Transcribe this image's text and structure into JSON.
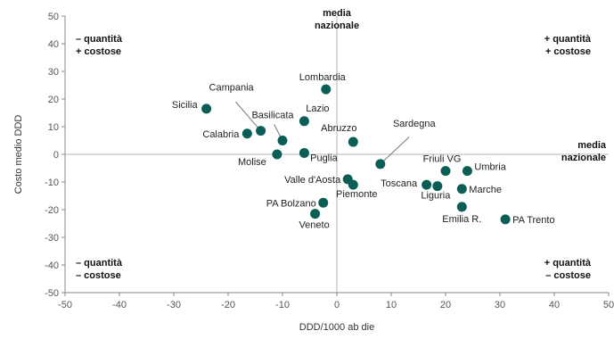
{
  "chart_data": {
    "type": "scatter",
    "xlabel": "DDD/1000 ab die",
    "ylabel": "Costo medio DDD",
    "xlim": [
      -50,
      50
    ],
    "ylim": [
      -50,
      50
    ],
    "xticks": [
      -50,
      -40,
      -30,
      -20,
      -10,
      0,
      10,
      20,
      30,
      40,
      50
    ],
    "yticks": [
      -50,
      -40,
      -30,
      -20,
      -10,
      0,
      10,
      20,
      30,
      40,
      50
    ],
    "grid": false,
    "reference_lines": {
      "vertical_label": [
        "media",
        "nazionale"
      ],
      "horizontal_label": [
        "media",
        "nazionale"
      ]
    },
    "quadrant_labels": {
      "top_left": [
        "– quantità",
        "+ costose"
      ],
      "top_right": [
        "+ quantità",
        "+ costose"
      ],
      "bottom_left": [
        "– quantità",
        "– costose"
      ],
      "bottom_right": [
        "+ quantità",
        "– costose"
      ]
    },
    "marker_color": "#0b5e55",
    "points": [
      {
        "label": "Lombardia",
        "x": -2,
        "y": 23.5
      },
      {
        "label": "Sicilia",
        "x": -24,
        "y": 16.5
      },
      {
        "label": "Campania",
        "x": -14,
        "y": 8.5
      },
      {
        "label": "Basilicata",
        "x": -10,
        "y": 5
      },
      {
        "label": "Lazio",
        "x": -6,
        "y": 12
      },
      {
        "label": "Calabria",
        "x": -16.5,
        "y": 7.5
      },
      {
        "label": "Molise",
        "x": -11,
        "y": 0
      },
      {
        "label": "Puglia",
        "x": -6,
        "y": 0.5
      },
      {
        "label": "Abruzzo",
        "x": 3,
        "y": 4.5
      },
      {
        "label": "Sardegna",
        "x": 8,
        "y": -3.5
      },
      {
        "label": "Valle d'Aosta",
        "x": 2,
        "y": -9
      },
      {
        "label": "Piemonte",
        "x": 3,
        "y": -11
      },
      {
        "label": "PA Bolzano",
        "x": -2.5,
        "y": -17.5
      },
      {
        "label": "Veneto",
        "x": -4,
        "y": -21.5
      },
      {
        "label": "Friuli VG",
        "x": 20,
        "y": -6
      },
      {
        "label": "Umbria",
        "x": 24,
        "y": -6
      },
      {
        "label": "Toscana",
        "x": 16.5,
        "y": -11
      },
      {
        "label": "Liguria",
        "x": 18.5,
        "y": -11.5
      },
      {
        "label": "Marche",
        "x": 23,
        "y": -12.5
      },
      {
        "label": "Emilia R.",
        "x": 23,
        "y": -19
      },
      {
        "label": "PA Trento",
        "x": 31,
        "y": -23.5
      }
    ]
  }
}
